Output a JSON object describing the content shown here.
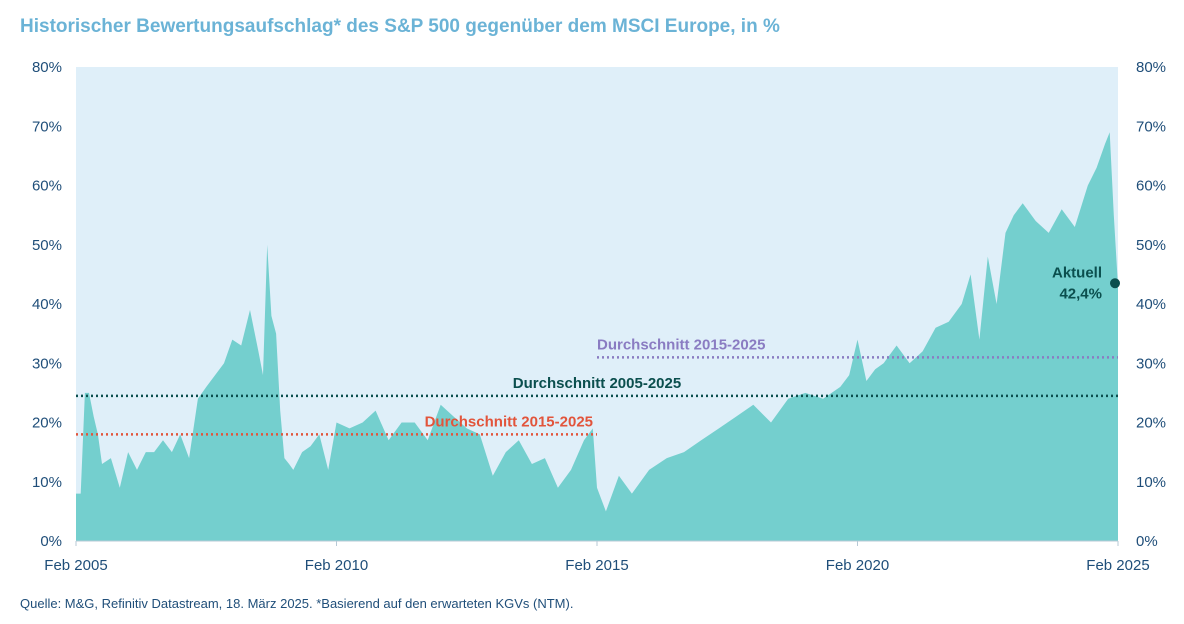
{
  "title": "Historischer Bewertungsaufschlag* des S&P 500 gegenüber dem MSCI Europe, in %",
  "source": "Quelle: M&G, Refinitiv Datastream, 18. März 2025. *Basierend auf den erwarteten KGVs (NTM).",
  "colors": {
    "area": "#74cfce",
    "plot_background": "#dfeff9",
    "text": "#1f4e79",
    "avg_2005_2025": "#0b4f4e",
    "avg_2015_2025_purple": "#8a7cc2",
    "avg_2015_2025_red": "#e2543b",
    "title": "#6bb3d6"
  },
  "chart_data": {
    "type": "area",
    "title": "Historischer Bewertungsaufschlag* des S&P 500 gegenüber dem MSCI Europe, in %",
    "xlabel": "",
    "ylabel": "",
    "ylim": [
      0,
      80
    ],
    "yticks": [
      "0%",
      "10%",
      "20%",
      "30%",
      "40%",
      "50%",
      "60%",
      "70%",
      "80%"
    ],
    "ytick_values": [
      0,
      10,
      20,
      30,
      40,
      50,
      60,
      70,
      80
    ],
    "xticks": [
      "Feb 2005",
      "Feb 2010",
      "Feb 2015",
      "Feb 2020",
      "Feb 2025"
    ],
    "xtick_values": [
      2005.08,
      2010.08,
      2015.08,
      2020.08,
      2025.08
    ],
    "xlim": [
      2005.08,
      2025.08
    ],
    "grid": false,
    "dual_y_axis": true,
    "series": [
      {
        "x": [
          2005.08,
          2005.17,
          2005.25,
          2005.33,
          2005.42,
          2005.5,
          2005.58,
          2005.75,
          2005.92,
          2006.08,
          2006.25,
          2006.42,
          2006.58,
          2006.75,
          2006.92,
          2007.08,
          2007.25,
          2007.42,
          2007.58,
          2007.75,
          2007.92,
          2008.08,
          2008.25,
          2008.42,
          2008.58,
          2008.67,
          2008.75,
          2008.83,
          2008.92,
          2009.0,
          2009.08,
          2009.17,
          2009.25,
          2009.42,
          2009.58,
          2009.75,
          2009.92,
          2010.08,
          2010.33,
          2010.58,
          2010.83,
          2011.08,
          2011.33,
          2011.58,
          2011.83,
          2012.08,
          2012.33,
          2012.58,
          2012.83,
          2013.08,
          2013.33,
          2013.58,
          2013.83,
          2014.08,
          2014.33,
          2014.58,
          2014.83,
          2015.0,
          2015.08,
          2015.25,
          2015.5,
          2015.75,
          2016.08,
          2016.42,
          2016.75,
          2017.08,
          2017.42,
          2017.75,
          2018.08,
          2018.42,
          2018.75,
          2019.08,
          2019.42,
          2019.75,
          2019.92,
          2020.08,
          2020.25,
          2020.42,
          2020.58,
          2020.83,
          2021.08,
          2021.33,
          2021.58,
          2021.83,
          2022.08,
          2022.25,
          2022.42,
          2022.58,
          2022.75,
          2022.92,
          2023.08,
          2023.25,
          2023.5,
          2023.75,
          2024.0,
          2024.25,
          2024.5,
          2024.67,
          2024.83,
          2024.92,
          2025.0,
          2025.08
        ],
        "values": [
          8,
          8,
          25,
          25,
          21,
          18,
          13,
          14,
          9,
          15,
          12,
          15,
          15,
          17,
          15,
          18,
          14,
          24,
          26,
          28,
          30,
          34,
          33,
          39,
          32,
          28,
          50,
          38,
          35,
          22,
          14,
          13,
          12,
          15,
          16,
          18,
          12,
          20,
          19,
          20,
          22,
          17,
          20,
          20,
          17,
          23,
          21,
          19,
          18,
          11,
          15,
          17,
          13,
          14,
          9,
          12,
          17,
          19,
          9,
          5,
          11,
          8,
          12,
          14,
          15,
          17,
          19,
          21,
          23,
          20,
          24,
          25,
          24,
          26,
          28,
          34,
          27,
          29,
          30,
          33,
          30,
          32,
          36,
          37,
          40,
          45,
          34,
          48,
          40,
          52,
          55,
          57,
          54,
          52,
          56,
          53,
          60,
          63,
          67,
          69,
          55,
          43
        ]
      }
    ],
    "reference_lines": [
      {
        "label": "Durchschnitt 2015-2025",
        "value": 31,
        "x_start": 2015.08,
        "x_end": 2025.08,
        "style": "dotted",
        "color": "#8a7cc2"
      },
      {
        "label": "Durchschnitt 2005-2025",
        "value": 24.5,
        "x_start": 2005.08,
        "x_end": 2025.08,
        "style": "dotted",
        "color": "#0b4f4e"
      },
      {
        "label": "Durchschnitt 2015-2025",
        "value": 18,
        "x_start": 2005.08,
        "x_end": 2015.08,
        "style": "dotted",
        "color": "#e2543b"
      }
    ],
    "annotation": {
      "label": "Aktuell",
      "value_label": "42,4%",
      "x": 2025.08,
      "y": 43.5
    }
  }
}
